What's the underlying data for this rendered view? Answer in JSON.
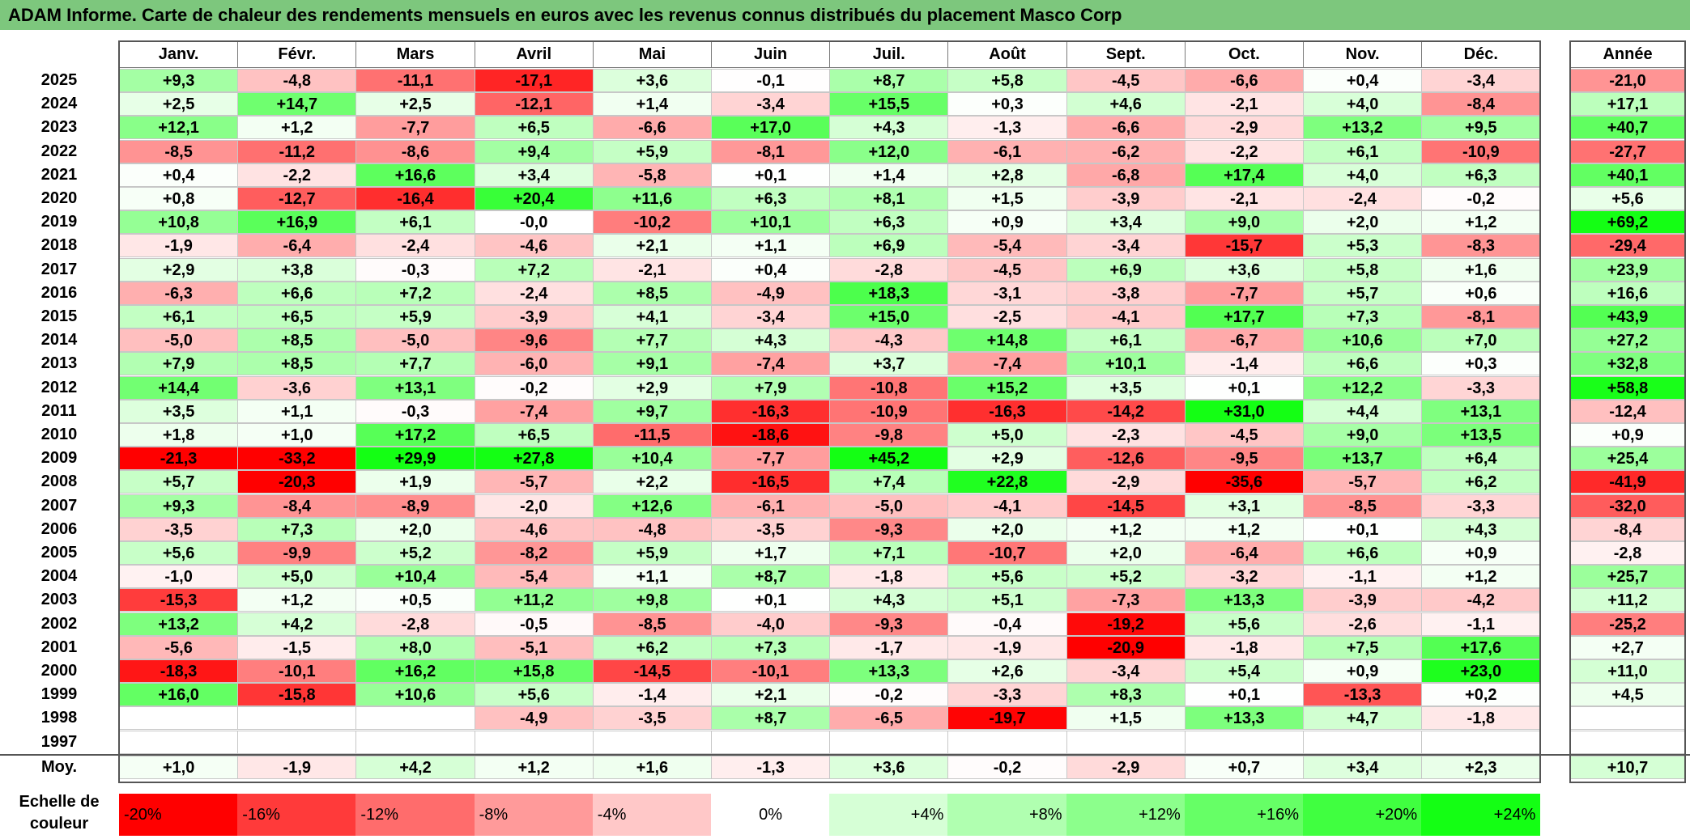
{
  "title": "ADAM Informe. Carte de chaleur des rendements mensuels en euros avec les revenus connus distribués du placement Masco Corp",
  "chart_data": {
    "type": "heatmap",
    "months": [
      "Janv.",
      "Févr.",
      "Mars",
      "Avril",
      "Mai",
      "Juin",
      "Juil.",
      "Août",
      "Sept.",
      "Oct.",
      "Nov.",
      "Déc."
    ],
    "annual_label": "Année",
    "rows": [
      {
        "year": "2025",
        "values": [
          "+9,3",
          "-4,8",
          "-11,1",
          "-17,1",
          "+3,6",
          "-0,1",
          "+8,7",
          "+5,8",
          "-4,5",
          "-6,6",
          "+0,4",
          "-3,4"
        ],
        "annual": "-21,0"
      },
      {
        "year": "2024",
        "values": [
          "+2,5",
          "+14,7",
          "+2,5",
          "-12,1",
          "+1,4",
          "-3,4",
          "+15,5",
          "+0,3",
          "+4,6",
          "-2,1",
          "+4,0",
          "-8,4"
        ],
        "annual": "+17,1"
      },
      {
        "year": "2023",
        "values": [
          "+12,1",
          "+1,2",
          "-7,7",
          "+6,5",
          "-6,6",
          "+17,0",
          "+4,3",
          "-1,3",
          "-6,6",
          "-2,9",
          "+13,2",
          "+9,5"
        ],
        "annual": "+40,7"
      },
      {
        "year": "2022",
        "values": [
          "-8,5",
          "-11,2",
          "-8,6",
          "+9,4",
          "+5,9",
          "-8,1",
          "+12,0",
          "-6,1",
          "-6,2",
          "-2,2",
          "+6,1",
          "-10,9"
        ],
        "annual": "-27,7"
      },
      {
        "year": "2021",
        "values": [
          "+0,4",
          "-2,2",
          "+16,6",
          "+3,4",
          "-5,8",
          "+0,1",
          "+1,4",
          "+2,8",
          "-6,8",
          "+17,4",
          "+4,0",
          "+6,3"
        ],
        "annual": "+40,1"
      },
      {
        "year": "2020",
        "values": [
          "+0,8",
          "-12,7",
          "-16,4",
          "+20,4",
          "+11,6",
          "+6,3",
          "+8,1",
          "+1,5",
          "-3,9",
          "-2,1",
          "-2,4",
          "-0,2"
        ],
        "annual": "+5,6"
      },
      {
        "year": "2019",
        "values": [
          "+10,8",
          "+16,9",
          "+6,1",
          "-0,0",
          "-10,2",
          "+10,1",
          "+6,3",
          "+0,9",
          "+3,4",
          "+9,0",
          "+2,0",
          "+1,2"
        ],
        "annual": "+69,2"
      },
      {
        "year": "2018",
        "values": [
          "-1,9",
          "-6,4",
          "-2,4",
          "-4,6",
          "+2,1",
          "+1,1",
          "+6,9",
          "-5,4",
          "-3,4",
          "-15,7",
          "+5,3",
          "-8,3"
        ],
        "annual": "-29,4"
      },
      {
        "year": "2017",
        "values": [
          "+2,9",
          "+3,8",
          "-0,3",
          "+7,2",
          "-2,1",
          "+0,4",
          "-2,8",
          "-4,5",
          "+6,9",
          "+3,6",
          "+5,8",
          "+1,6"
        ],
        "annual": "+23,9"
      },
      {
        "year": "2016",
        "values": [
          "-6,3",
          "+6,6",
          "+7,2",
          "-2,4",
          "+8,5",
          "-4,9",
          "+18,3",
          "-3,1",
          "-3,8",
          "-7,7",
          "+5,7",
          "+0,6"
        ],
        "annual": "+16,6"
      },
      {
        "year": "2015",
        "values": [
          "+6,1",
          "+6,5",
          "+5,9",
          "-3,9",
          "+4,1",
          "-3,4",
          "+15,0",
          "-2,5",
          "-4,1",
          "+17,7",
          "+7,3",
          "-8,1"
        ],
        "annual": "+43,9"
      },
      {
        "year": "2014",
        "values": [
          "-5,0",
          "+8,5",
          "-5,0",
          "-9,6",
          "+7,7",
          "+4,3",
          "-4,3",
          "+14,8",
          "+6,1",
          "-6,7",
          "+10,6",
          "+7,0"
        ],
        "annual": "+27,2"
      },
      {
        "year": "2013",
        "values": [
          "+7,9",
          "+8,5",
          "+7,7",
          "-6,0",
          "+9,1",
          "-7,4",
          "+3,7",
          "-7,4",
          "+10,1",
          "-1,4",
          "+6,6",
          "+0,3"
        ],
        "annual": "+32,8"
      },
      {
        "year": "2012",
        "values": [
          "+14,4",
          "-3,6",
          "+13,1",
          "-0,2",
          "+2,9",
          "+7,9",
          "-10,8",
          "+15,2",
          "+3,5",
          "+0,1",
          "+12,2",
          "-3,3"
        ],
        "annual": "+58,8"
      },
      {
        "year": "2011",
        "values": [
          "+3,5",
          "+1,1",
          "-0,3",
          "-7,4",
          "+9,7",
          "-16,3",
          "-10,9",
          "-16,3",
          "-14,2",
          "+31,0",
          "+4,4",
          "+13,1"
        ],
        "annual": "-12,4"
      },
      {
        "year": "2010",
        "values": [
          "+1,8",
          "+1,0",
          "+17,2",
          "+6,5",
          "-11,5",
          "-18,6",
          "-9,8",
          "+5,0",
          "-2,3",
          "-4,5",
          "+9,0",
          "+13,5"
        ],
        "annual": "+0,9"
      },
      {
        "year": "2009",
        "values": [
          "-21,3",
          "-33,2",
          "+29,9",
          "+27,8",
          "+10,4",
          "-7,7",
          "+45,2",
          "+2,9",
          "-12,6",
          "-9,5",
          "+13,7",
          "+6,4"
        ],
        "annual": "+25,4"
      },
      {
        "year": "2008",
        "values": [
          "+5,7",
          "-20,3",
          "+1,9",
          "-5,7",
          "+2,2",
          "-16,5",
          "+7,4",
          "+22,8",
          "-2,9",
          "-35,6",
          "-5,7",
          "+6,2"
        ],
        "annual": "-41,9"
      },
      {
        "year": "2007",
        "values": [
          "+9,3",
          "-8,4",
          "-8,9",
          "-2,0",
          "+12,6",
          "-6,1",
          "-5,0",
          "-4,1",
          "-14,5",
          "+3,1",
          "-8,5",
          "-3,3"
        ],
        "annual": "-32,0"
      },
      {
        "year": "2006",
        "values": [
          "-3,5",
          "+7,3",
          "+2,0",
          "-4,6",
          "-4,8",
          "-3,5",
          "-9,3",
          "+2,0",
          "+1,2",
          "+1,2",
          "+0,1",
          "+4,3"
        ],
        "annual": "-8,4"
      },
      {
        "year": "2005",
        "values": [
          "+5,6",
          "-9,9",
          "+5,2",
          "-8,2",
          "+5,9",
          "+1,7",
          "+7,1",
          "-10,7",
          "+2,0",
          "-6,4",
          "+6,6",
          "+0,9"
        ],
        "annual": "-2,8"
      },
      {
        "year": "2004",
        "values": [
          "-1,0",
          "+5,0",
          "+10,4",
          "-5,4",
          "+1,1",
          "+8,7",
          "-1,8",
          "+5,6",
          "+5,2",
          "-3,2",
          "-1,1",
          "+1,2"
        ],
        "annual": "+25,7"
      },
      {
        "year": "2003",
        "values": [
          "-15,3",
          "+1,2",
          "+0,5",
          "+11,2",
          "+9,8",
          "+0,1",
          "+4,3",
          "+5,1",
          "-7,3",
          "+13,3",
          "-3,9",
          "-4,2"
        ],
        "annual": "+11,2"
      },
      {
        "year": "2002",
        "values": [
          "+13,2",
          "+4,2",
          "-2,8",
          "-0,5",
          "-8,5",
          "-4,0",
          "-9,3",
          "-0,4",
          "-19,2",
          "+5,6",
          "-2,6",
          "-1,1"
        ],
        "annual": "-25,2"
      },
      {
        "year": "2001",
        "values": [
          "-5,6",
          "-1,5",
          "+8,0",
          "-5,1",
          "+6,2",
          "+7,3",
          "-1,7",
          "-1,9",
          "-20,9",
          "-1,8",
          "+7,5",
          "+17,6"
        ],
        "annual": "+2,7"
      },
      {
        "year": "2000",
        "values": [
          "-18,3",
          "-10,1",
          "+16,2",
          "+15,8",
          "-14,5",
          "-10,1",
          "+13,3",
          "+2,6",
          "-3,4",
          "+5,4",
          "+0,9",
          "+23,0"
        ],
        "annual": "+11,0"
      },
      {
        "year": "1999",
        "values": [
          "+16,0",
          "-15,8",
          "+10,6",
          "+5,6",
          "-1,4",
          "+2,1",
          "-0,2",
          "-3,3",
          "+8,3",
          "+0,1",
          "-13,3",
          "+0,2"
        ],
        "annual": "+4,5"
      },
      {
        "year": "1998",
        "values": [
          "",
          "",
          "",
          "-4,9",
          "-3,5",
          "+8,7",
          "-6,5",
          "-19,7",
          "+1,5",
          "+13,3",
          "+4,7",
          "-1,8"
        ],
        "annual": ""
      },
      {
        "year": "1997",
        "values": [
          "",
          "",
          "",
          "",
          "",
          "",
          "",
          "",
          "",
          "",
          "",
          ""
        ],
        "annual": ""
      }
    ],
    "average": {
      "label": "Moy.",
      "values": [
        "+1,0",
        "-1,9",
        "+4,2",
        "+1,2",
        "+1,6",
        "-1,3",
        "+3,6",
        "-0,2",
        "-2,9",
        "+0,7",
        "+3,4",
        "+2,3"
      ],
      "annual": "+10,7"
    },
    "color_scale": {
      "label": "Echelle de couleur",
      "steps": [
        {
          "label": "-20%",
          "color": "#ff0000"
        },
        {
          "label": "-16%",
          "color": "#ff3a3a"
        },
        {
          "label": "-12%",
          "color": "#ff6c6c"
        },
        {
          "label": "-8%",
          "color": "#ff9a9a"
        },
        {
          "label": "-4%",
          "color": "#ffc8c8"
        },
        {
          "label": "0%",
          "color": "#ffffff"
        },
        {
          "label": "+4%",
          "color": "#d6ffd6"
        },
        {
          "label": "+8%",
          "color": "#b0ffb0"
        },
        {
          "label": "+12%",
          "color": "#8cff8c"
        },
        {
          "label": "+16%",
          "color": "#66ff66"
        },
        {
          "label": "+20%",
          "color": "#40ff40"
        },
        {
          "label": "+24%",
          "color": "#14ff14"
        }
      ]
    }
  }
}
